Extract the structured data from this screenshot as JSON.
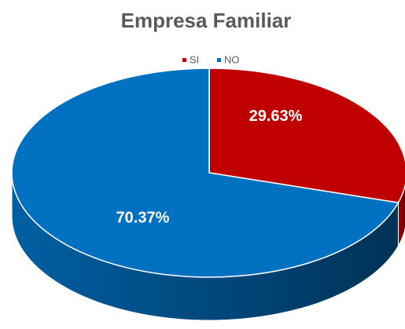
{
  "chart_data": {
    "type": "pie",
    "title": "Empresa Familiar",
    "categories": [
      "SI",
      "NO"
    ],
    "values": [
      29.63,
      70.37
    ],
    "value_labels": [
      "29.63%",
      "70.37%"
    ],
    "colors": [
      "#c00000",
      "#0070c0"
    ],
    "legend": "top"
  }
}
